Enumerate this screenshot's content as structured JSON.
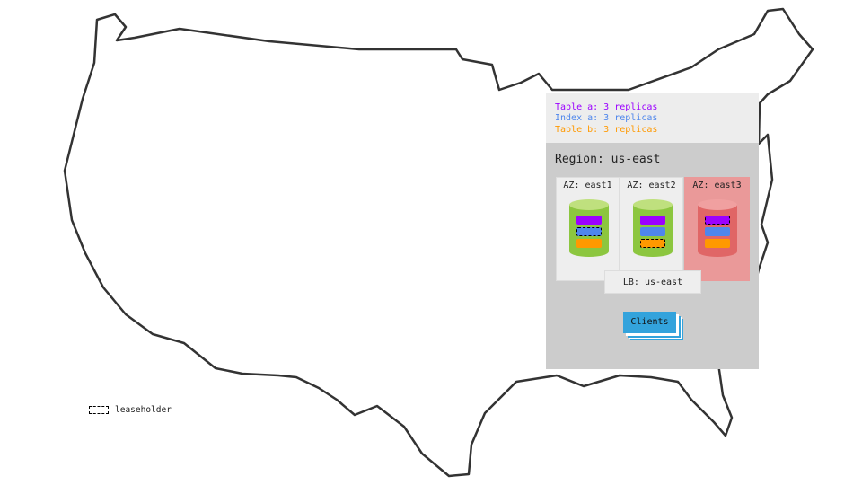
{
  "legend": [
    {
      "text": "Table a: 3 replicas",
      "color": "#9b00ff"
    },
    {
      "text": "Index a: 3 replicas",
      "color": "#4f86ec"
    },
    {
      "text": "Table b: 3 replicas",
      "color": "#ff9900"
    }
  ],
  "region": {
    "title": "Region: us-east"
  },
  "azs": [
    {
      "label": "AZ: east1",
      "status": "healthy",
      "leaseholder": "index-a"
    },
    {
      "label": "AZ: east2",
      "status": "healthy",
      "leaseholder": "table-b"
    },
    {
      "label": "AZ: east3",
      "status": "failed",
      "leaseholder": "table-a"
    }
  ],
  "load_balancer": "LB: us-east",
  "clients": "Clients",
  "key": {
    "leaseholder": "leaseholder"
  },
  "colors": {
    "healthy_node": "#8cc63f",
    "failed_node": "#e06666",
    "failed_az_bg": "#ea9999",
    "clients": "#33a3dc"
  }
}
